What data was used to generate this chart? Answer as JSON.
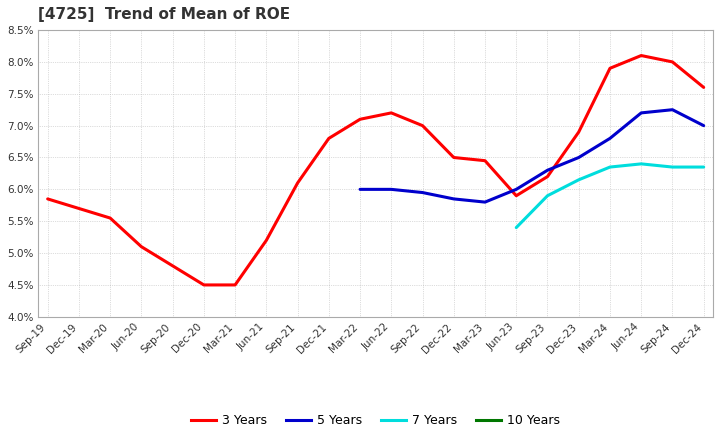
{
  "title": "[4725]  Trend of Mean of ROE",
  "ylim": [
    0.04,
    0.085
  ],
  "yticks": [
    0.04,
    0.045,
    0.05,
    0.055,
    0.06,
    0.065,
    0.07,
    0.075,
    0.08,
    0.085
  ],
  "background_color": "#ffffff",
  "plot_bg_color": "#ffffff",
  "grid_color": "#aaaaaa",
  "series": {
    "3 Years": {
      "color": "#ff0000",
      "data_y": [
        0.0585,
        0.057,
        0.0555,
        0.051,
        0.048,
        0.045,
        0.045,
        0.052,
        0.061,
        0.068,
        0.071,
        0.072,
        0.07,
        0.065,
        0.0645,
        0.059,
        0.062,
        0.069,
        0.079,
        0.081,
        0.08,
        0.076
      ]
    },
    "5 Years": {
      "color": "#0000cc",
      "data_y": [
        null,
        null,
        null,
        null,
        null,
        null,
        null,
        null,
        null,
        null,
        0.06,
        0.06,
        0.0595,
        0.0585,
        0.058,
        0.06,
        0.063,
        0.065,
        0.068,
        0.072,
        0.0725,
        0.07
      ]
    },
    "7 Years": {
      "color": "#00dddd",
      "data_y": [
        null,
        null,
        null,
        null,
        null,
        null,
        null,
        null,
        null,
        null,
        null,
        null,
        null,
        null,
        null,
        0.054,
        0.059,
        0.0615,
        0.0635,
        0.064,
        0.0635,
        0.0635
      ]
    },
    "10 Years": {
      "color": "#007700",
      "data_y": [
        null,
        null,
        null,
        null,
        null,
        null,
        null,
        null,
        null,
        null,
        null,
        null,
        null,
        null,
        null,
        null,
        null,
        null,
        null,
        null,
        null,
        null
      ]
    }
  },
  "x_labels": [
    "Sep-19",
    "Dec-19",
    "Mar-20",
    "Jun-20",
    "Sep-20",
    "Dec-20",
    "Mar-21",
    "Jun-21",
    "Sep-21",
    "Dec-21",
    "Mar-22",
    "Jun-22",
    "Sep-22",
    "Dec-22",
    "Mar-23",
    "Jun-23",
    "Sep-23",
    "Dec-23",
    "Mar-24",
    "Jun-24",
    "Sep-24",
    "Dec-24"
  ],
  "legend_labels": [
    "3 Years",
    "5 Years",
    "7 Years",
    "10 Years"
  ],
  "legend_colors": [
    "#ff0000",
    "#0000cc",
    "#00dddd",
    "#007700"
  ]
}
